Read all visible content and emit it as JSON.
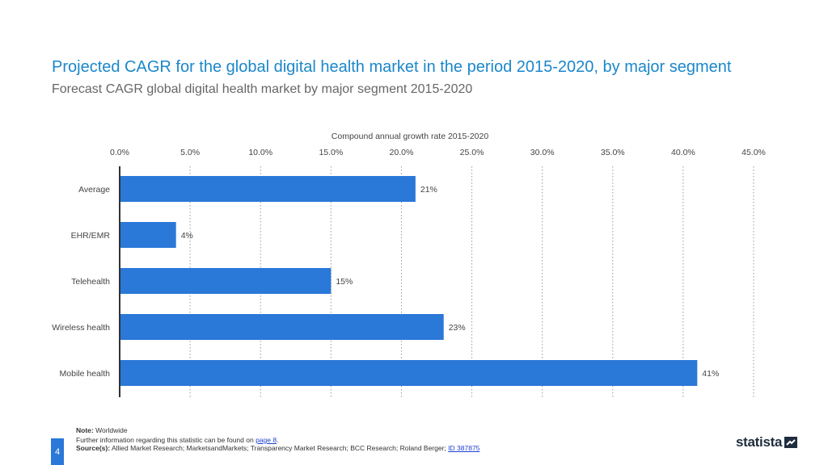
{
  "header": {
    "title": "Projected CAGR for the global digital health market in the period 2015-2020, by major segment",
    "subtitle": "Forecast CAGR global digital health market by major segment 2015-2020"
  },
  "chart_data": {
    "type": "bar",
    "orientation": "horizontal",
    "xlabel": "Compound annual growth rate 2015-2020",
    "xlim": [
      0,
      45
    ],
    "ticks": [
      "0.0%",
      "5.0%",
      "10.0%",
      "15.0%",
      "20.0%",
      "25.0%",
      "30.0%",
      "35.0%",
      "40.0%",
      "45.0%"
    ],
    "tick_values": [
      0,
      5,
      10,
      15,
      20,
      25,
      30,
      35,
      40,
      45
    ],
    "grid": true,
    "categories": [
      "Average",
      "EHR/EMR",
      "Telehealth",
      "Wireless health",
      "Mobile health"
    ],
    "values": [
      21,
      4,
      15,
      23,
      41
    ],
    "labels": [
      "21%",
      "4%",
      "15%",
      "23%",
      "41%"
    ],
    "bar_color": "#2a78d8"
  },
  "footer": {
    "note_label": "Note:",
    "note_text": "Worldwide",
    "info_text": "Further information regarding this statistic can be found on",
    "info_link": "page 8",
    "info_end": ".",
    "source_label": "Source(s):",
    "source_text": "Allied Market Research; MarketsandMarkets; Transparency Market Research; BCC Research; Roland Berger;",
    "source_id": "ID 387875",
    "page_number": "4",
    "brand": "statista"
  }
}
